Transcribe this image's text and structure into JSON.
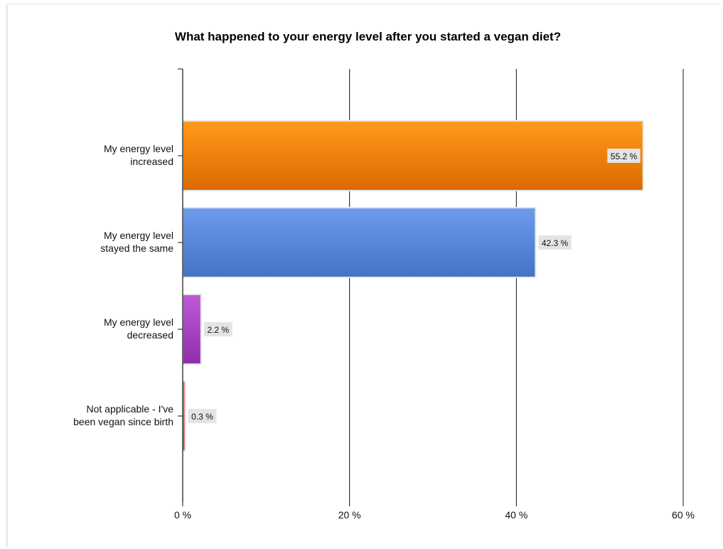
{
  "chart_data": {
    "type": "bar",
    "orientation": "horizontal",
    "title": "What happened to your energy level after you started a vegan diet?",
    "categories": [
      [
        "My energy level",
        "increased"
      ],
      [
        "My energy level",
        "stayed the same"
      ],
      [
        "My energy level",
        "decreased"
      ],
      [
        "Not applicable - I've",
        "been vegan since birth"
      ]
    ],
    "values": [
      55.2,
      42.3,
      2.2,
      0.3
    ],
    "data_labels": [
      "55.2 %",
      "42.3 %",
      "2.2 %",
      "0.3 %"
    ],
    "bar_colors": [
      {
        "light": "#ff9a1a",
        "dark": "#db6a00"
      },
      {
        "light": "#6e9cec",
        "dark": "#4472c4"
      },
      {
        "light": "#c05ad8",
        "dark": "#8e2fa8"
      },
      {
        "light": "#f06050",
        "dark": "#c63a2c"
      }
    ],
    "xlim": [
      0,
      60
    ],
    "x_ticks": [
      0,
      20,
      40,
      60
    ],
    "x_tick_labels": [
      "0 %",
      "20 %",
      "40 %",
      "60 %"
    ],
    "grid": "vertical",
    "legend": "none"
  }
}
